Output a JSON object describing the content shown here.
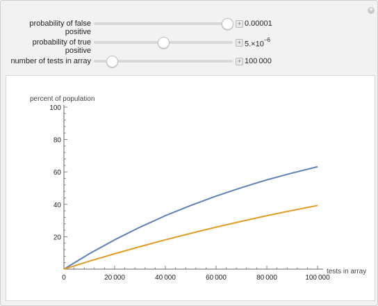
{
  "controls": [
    {
      "label": "probability of false positive",
      "value": "0.00001",
      "slider_fraction": 0.96
    },
    {
      "label": "probability of true positive",
      "value_mantissa": "5.×10",
      "value_exp": "−6",
      "slider_fraction": 0.5
    },
    {
      "label": "number of tests in array",
      "value": "100 000",
      "slider_fraction": 0.13
    }
  ],
  "chart_data": {
    "type": "line",
    "ylabel": "percent of population",
    "xlabel": "tests in array",
    "xlim": [
      0,
      100000
    ],
    "ylim": [
      0,
      100
    ],
    "x_ticks": [
      "0",
      "20 000",
      "40 000",
      "60 000",
      "80 000",
      "100 000"
    ],
    "y_ticks": [
      "20",
      "40",
      "60",
      "80",
      "100"
    ],
    "series": [
      {
        "color": "#5e81b5",
        "x": [
          0,
          10000,
          20000,
          30000,
          40000,
          50000,
          60000,
          70000,
          80000,
          90000,
          100000
        ],
        "values": [
          0,
          9.5,
          18.1,
          25.9,
          33.0,
          39.3,
          45.1,
          50.3,
          55.1,
          59.3,
          63.2
        ]
      },
      {
        "color": "#e19c24",
        "x": [
          0,
          10000,
          20000,
          30000,
          40000,
          50000,
          60000,
          70000,
          80000,
          90000,
          100000
        ],
        "values": [
          0,
          4.9,
          9.5,
          13.9,
          18.1,
          22.1,
          25.9,
          29.5,
          33.0,
          36.2,
          39.3
        ]
      }
    ]
  }
}
